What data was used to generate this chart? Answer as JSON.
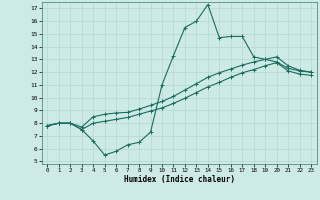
{
  "xlabel": "Humidex (Indice chaleur)",
  "ylabel": "",
  "bg_color": "#cdeae7",
  "grid_color": "#b2d8d4",
  "line_color": "#1a6b5e",
  "xlim": [
    -0.5,
    23.5
  ],
  "ylim": [
    4.8,
    17.5
  ],
  "xticks": [
    0,
    1,
    2,
    3,
    4,
    5,
    6,
    7,
    8,
    9,
    10,
    11,
    12,
    13,
    14,
    15,
    16,
    17,
    18,
    19,
    20,
    21,
    22,
    23
  ],
  "yticks": [
    5,
    6,
    7,
    8,
    9,
    10,
    11,
    12,
    13,
    14,
    15,
    16,
    17
  ],
  "line1_x": [
    0,
    1,
    2,
    3,
    4,
    5,
    6,
    7,
    8,
    9,
    10,
    11,
    12,
    13,
    14,
    15,
    16,
    17,
    18,
    19,
    20,
    21,
    22,
    23
  ],
  "line1_y": [
    7.8,
    8.0,
    8.0,
    7.5,
    6.6,
    5.5,
    5.8,
    6.3,
    6.5,
    7.3,
    11.0,
    13.3,
    15.5,
    16.0,
    17.3,
    14.7,
    14.8,
    14.8,
    13.2,
    13.0,
    12.8,
    12.3,
    12.1,
    12.0
  ],
  "line2_x": [
    0,
    1,
    2,
    3,
    4,
    5,
    6,
    7,
    8,
    9,
    10,
    11,
    12,
    13,
    14,
    15,
    16,
    17,
    18,
    19,
    20,
    21,
    22,
    23
  ],
  "line2_y": [
    7.8,
    8.0,
    8.0,
    7.7,
    8.5,
    8.7,
    8.8,
    8.85,
    9.1,
    9.4,
    9.7,
    10.1,
    10.6,
    11.1,
    11.6,
    11.95,
    12.25,
    12.55,
    12.8,
    13.0,
    13.2,
    12.5,
    12.15,
    12.0
  ],
  "line3_x": [
    0,
    1,
    2,
    3,
    4,
    5,
    6,
    7,
    8,
    9,
    10,
    11,
    12,
    13,
    14,
    15,
    16,
    17,
    18,
    19,
    20,
    21,
    22,
    23
  ],
  "line3_y": [
    7.8,
    8.0,
    8.0,
    7.5,
    8.0,
    8.15,
    8.3,
    8.45,
    8.7,
    8.95,
    9.2,
    9.55,
    9.95,
    10.4,
    10.85,
    11.2,
    11.6,
    11.95,
    12.2,
    12.5,
    12.75,
    12.1,
    11.85,
    11.75
  ]
}
